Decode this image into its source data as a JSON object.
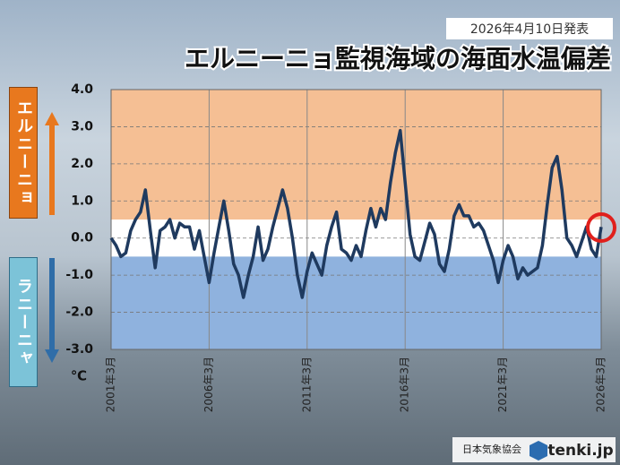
{
  "chart_data": {
    "type": "line",
    "title": "エルニーニョ監視海域の海面水温偏差",
    "subtitle": "2026年4月10日発表",
    "y_unit": "℃",
    "upper_label": "エルニーニョ",
    "lower_label": "ラニーニャ",
    "credit": "日本気象協会",
    "logo": "tenki.jp",
    "color": "#1f3a5f",
    "bands": [
      {
        "from": 0.5,
        "to": 4.0,
        "color": "#f5bf94"
      },
      {
        "from": -0.5,
        "to": 0.5,
        "color": "#ffffff"
      },
      {
        "from": -3.0,
        "to": -0.5,
        "color": "#8fb2de"
      }
    ],
    "xlim": [
      2001.17,
      2026.17
    ],
    "xticks": [
      {
        "value": 2001.17,
        "label": "2001年3月"
      },
      {
        "value": 2006.17,
        "label": "2006年3月"
      },
      {
        "value": 2011.17,
        "label": "2011年3月"
      },
      {
        "value": 2016.17,
        "label": "2016年3月"
      },
      {
        "value": 2021.17,
        "label": "2021年3月"
      },
      {
        "value": 2026.17,
        "label": "2026年3月"
      }
    ],
    "ylim": [
      -3.0,
      4.0
    ],
    "yticks": [
      {
        "value": 4.0,
        "label": "4.0"
      },
      {
        "value": 3.0,
        "label": "3.0"
      },
      {
        "value": 2.0,
        "label": "2.0"
      },
      {
        "value": 1.0,
        "label": "1.0"
      },
      {
        "value": 0.0,
        "label": "0.0"
      },
      {
        "value": -1.0,
        "label": "-1.0"
      },
      {
        "value": -2.0,
        "label": "-2.0"
      },
      {
        "value": -3.0,
        "label": "-3.0"
      }
    ],
    "x": [
      2001.17,
      2001.42,
      2001.67,
      2001.92,
      2002.17,
      2002.42,
      2002.67,
      2002.92,
      2003.17,
      2003.42,
      2003.67,
      2003.92,
      2004.17,
      2004.42,
      2004.67,
      2004.92,
      2005.17,
      2005.42,
      2005.67,
      2005.92,
      2006.17,
      2006.42,
      2006.67,
      2006.92,
      2007.17,
      2007.42,
      2007.67,
      2007.92,
      2008.17,
      2008.42,
      2008.67,
      2008.92,
      2009.17,
      2009.42,
      2009.67,
      2009.92,
      2010.17,
      2010.42,
      2010.67,
      2010.92,
      2011.17,
      2011.42,
      2011.67,
      2011.92,
      2012.17,
      2012.42,
      2012.67,
      2012.92,
      2013.17,
      2013.42,
      2013.67,
      2013.92,
      2014.17,
      2014.42,
      2014.67,
      2014.92,
      2015.17,
      2015.42,
      2015.67,
      2015.92,
      2016.17,
      2016.42,
      2016.67,
      2016.92,
      2017.17,
      2017.42,
      2017.67,
      2017.92,
      2018.17,
      2018.42,
      2018.67,
      2018.92,
      2019.17,
      2019.42,
      2019.67,
      2019.92,
      2020.17,
      2020.42,
      2020.67,
      2020.92,
      2021.17,
      2021.42,
      2021.67,
      2021.92,
      2022.17,
      2022.42,
      2022.67,
      2022.92,
      2023.17,
      2023.42,
      2023.67,
      2023.92,
      2024.17,
      2024.42,
      2024.67,
      2024.92,
      2025.17,
      2025.42,
      2025.67,
      2025.92,
      2026.17
    ],
    "values": [
      0.0,
      -0.2,
      -0.5,
      -0.4,
      0.2,
      0.5,
      0.7,
      1.3,
      0.2,
      -0.8,
      0.2,
      0.3,
      0.5,
      0.0,
      0.4,
      0.3,
      0.3,
      -0.3,
      0.2,
      -0.5,
      -1.2,
      -0.4,
      0.3,
      1.0,
      0.2,
      -0.7,
      -1.0,
      -1.6,
      -1.0,
      -0.5,
      0.3,
      -0.6,
      -0.3,
      0.3,
      0.8,
      1.3,
      0.8,
      0.0,
      -1.0,
      -1.6,
      -0.9,
      -0.4,
      -0.7,
      -1.0,
      -0.2,
      0.3,
      0.7,
      -0.3,
      -0.4,
      -0.6,
      -0.2,
      -0.5,
      0.2,
      0.8,
      0.3,
      0.8,
      0.5,
      1.5,
      2.3,
      2.9,
      1.5,
      0.1,
      -0.5,
      -0.6,
      -0.1,
      0.4,
      0.1,
      -0.7,
      -0.9,
      -0.3,
      0.6,
      0.9,
      0.6,
      0.6,
      0.3,
      0.4,
      0.2,
      -0.2,
      -0.6,
      -1.2,
      -0.6,
      -0.2,
      -0.5,
      -1.1,
      -0.8,
      -1.0,
      -0.9,
      -0.8,
      -0.2,
      0.9,
      1.9,
      2.2,
      1.3,
      0.0,
      -0.2,
      -0.5,
      -0.1,
      0.3,
      -0.3,
      -0.5,
      0.3
    ]
  }
}
